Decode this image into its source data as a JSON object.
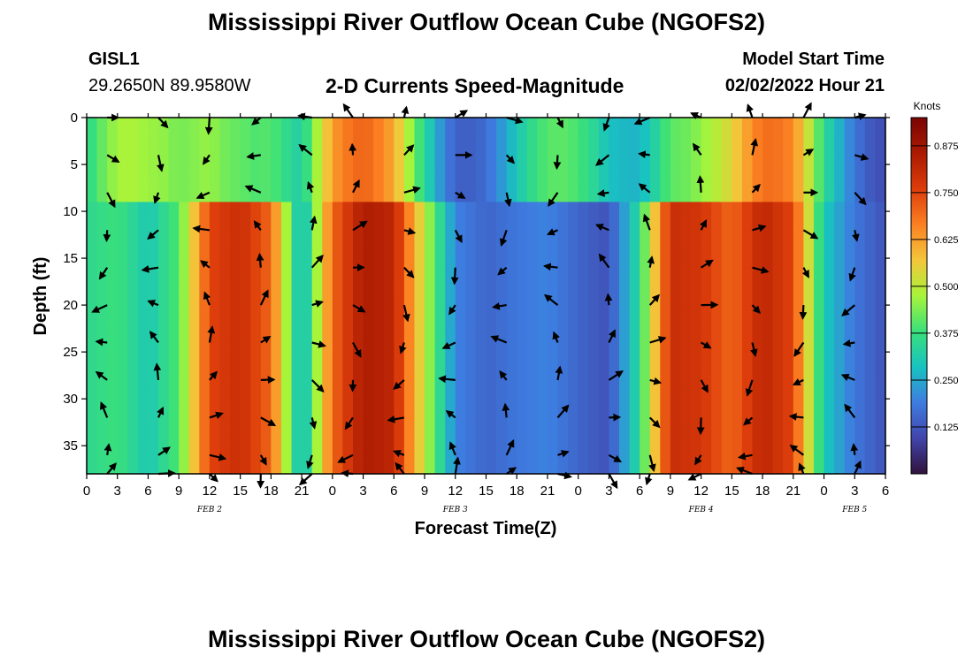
{
  "titles": {
    "main": "Mississippi River Outflow Ocean Cube (NGOFS2)",
    "repeat": "Mississippi River Outflow Ocean Cube (NGOFS2)",
    "subtitle": "2-D Currents Speed-Magnitude"
  },
  "station": {
    "id": "GISL1",
    "coords": "29.2650N  89.9580W"
  },
  "model_start": {
    "label": "Model Start Time",
    "value": "02/02/2022 Hour 21"
  },
  "chart_data": {
    "type": "heatmap",
    "xlabel": "Forecast Time(Z)",
    "ylabel": "Depth (ft)",
    "xlim": [
      0,
      78
    ],
    "ylim": [
      0,
      38
    ],
    "y_inverted": true,
    "x_ticks": [
      0,
      3,
      6,
      9,
      12,
      15,
      18,
      21,
      24,
      27,
      30,
      33,
      36,
      39,
      42,
      45,
      48,
      51,
      54,
      57,
      60,
      63,
      66,
      69,
      72,
      75,
      78
    ],
    "x_tick_labels": [
      "0",
      "3",
      "6",
      "9",
      "12",
      "15",
      "18",
      "21",
      "0",
      "3",
      "6",
      "9",
      "12",
      "15",
      "18",
      "21",
      "0",
      "3",
      "6",
      "9",
      "12",
      "15",
      "18",
      "21",
      "0",
      "3",
      "6"
    ],
    "y_ticks": [
      0,
      5,
      10,
      15,
      20,
      25,
      30,
      35
    ],
    "date_labels": [
      {
        "x": 12,
        "text": "FEB 2"
      },
      {
        "x": 36,
        "text": "FEB 3"
      },
      {
        "x": 60,
        "text": "FEB 4"
      },
      {
        "x": 75,
        "text": "FEB 5"
      }
    ],
    "colorbar": {
      "title": "Knots",
      "range": [
        0,
        0.95
      ],
      "ticks": [
        0.125,
        0.25,
        0.375,
        0.5,
        0.625,
        0.75,
        0.875
      ],
      "tick_labels": [
        "0.125",
        "0.250",
        "0.375",
        "0.500",
        "0.625",
        "0.750",
        "0.875"
      ]
    },
    "vector_times": [
      2,
      7,
      12,
      17,
      22,
      26,
      31,
      36,
      41,
      46,
      51,
      55,
      60,
      65,
      70,
      75,
      79
    ],
    "vector_depths": [
      0,
      4,
      8,
      12,
      16,
      20,
      24,
      28,
      32,
      36,
      38
    ],
    "speed_profile": [
      {
        "t": 0,
        "v": 0.35
      },
      {
        "t": 3,
        "v": 0.38
      },
      {
        "t": 6,
        "v": 0.3
      },
      {
        "t": 9,
        "v": 0.4
      },
      {
        "t": 12,
        "v": 0.75
      },
      {
        "t": 15,
        "v": 0.8
      },
      {
        "t": 18,
        "v": 0.7
      },
      {
        "t": 21,
        "v": 0.25
      },
      {
        "t": 24,
        "v": 0.7
      },
      {
        "t": 27,
        "v": 0.85
      },
      {
        "t": 30,
        "v": 0.82
      },
      {
        "t": 33,
        "v": 0.5
      },
      {
        "t": 36,
        "v": 0.2
      },
      {
        "t": 39,
        "v": 0.15
      },
      {
        "t": 42,
        "v": 0.18
      },
      {
        "t": 45,
        "v": 0.2
      },
      {
        "t": 48,
        "v": 0.15
      },
      {
        "t": 51,
        "v": 0.12
      },
      {
        "t": 54,
        "v": 0.35
      },
      {
        "t": 57,
        "v": 0.8
      },
      {
        "t": 60,
        "v": 0.78
      },
      {
        "t": 63,
        "v": 0.7
      },
      {
        "t": 66,
        "v": 0.82
      },
      {
        "t": 69,
        "v": 0.75
      },
      {
        "t": 72,
        "v": 0.3
      },
      {
        "t": 75,
        "v": 0.18
      },
      {
        "t": 78,
        "v": 0.12
      }
    ]
  }
}
